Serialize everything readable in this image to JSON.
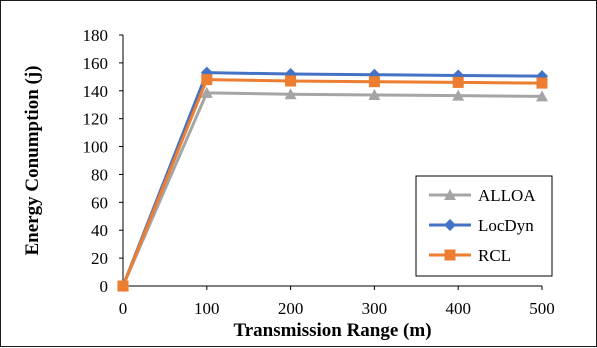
{
  "chart_data": {
    "type": "line",
    "title": "",
    "xlabel": "Transmission Range (m)",
    "ylabel": "Energy Conumption (j)",
    "x": [
      0,
      100,
      200,
      300,
      400,
      500
    ],
    "xlim": [
      0,
      500
    ],
    "ylim": [
      0,
      180
    ],
    "yticks": [
      0,
      20,
      40,
      60,
      80,
      100,
      120,
      140,
      160,
      180
    ],
    "xticks": [
      0,
      100,
      200,
      300,
      400,
      500
    ],
    "grid": false,
    "legend_position": "bottom-right",
    "series": [
      {
        "name": "ALLOA",
        "marker": "triangle",
        "color": "#a5a5a5",
        "values": [
          0,
          138.5,
          137.5,
          137,
          136.5,
          136
        ]
      },
      {
        "name": "LocDyn",
        "marker": "diamond",
        "color": "#4472c4",
        "values": [
          0,
          153,
          152,
          151.5,
          151,
          150.5
        ]
      },
      {
        "name": "RCL",
        "marker": "square",
        "color": "#ed7d31",
        "values": [
          0,
          148,
          147,
          146.5,
          146,
          145.5
        ]
      }
    ]
  }
}
